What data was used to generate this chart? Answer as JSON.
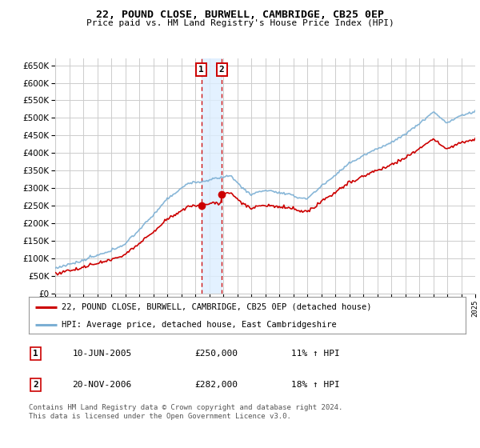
{
  "title": "22, POUND CLOSE, BURWELL, CAMBRIDGE, CB25 0EP",
  "subtitle": "Price paid vs. HM Land Registry's House Price Index (HPI)",
  "legend_line1": "22, POUND CLOSE, BURWELL, CAMBRIDGE, CB25 0EP (detached house)",
  "legend_line2": "HPI: Average price, detached house, East Cambridgeshire",
  "transaction1_date": "10-JUN-2005",
  "transaction1_price": "£250,000",
  "transaction1_hpi": "11% ↑ HPI",
  "transaction2_date": "20-NOV-2006",
  "transaction2_price": "£282,000",
  "transaction2_hpi": "18% ↑ HPI",
  "footer": "Contains HM Land Registry data © Crown copyright and database right 2024.\nThis data is licensed under the Open Government Licence v3.0.",
  "red_color": "#cc0000",
  "blue_color": "#7bafd4",
  "shade_color": "#ddeeff",
  "background_color": "#ffffff",
  "grid_color": "#cccccc",
  "box_color": "#cc0000",
  "ylim_min": 0,
  "ylim_max": 670000,
  "transaction1_year": 2005.44,
  "transaction2_year": 2006.89,
  "transaction1_value": 250000,
  "transaction2_value": 282000
}
